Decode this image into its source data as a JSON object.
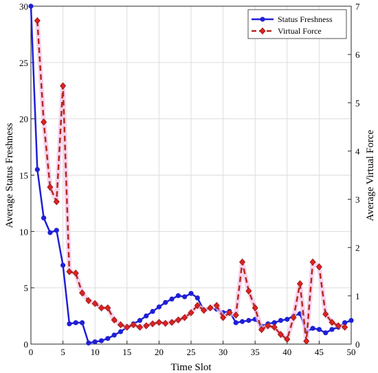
{
  "chart_data": {
    "type": "line",
    "title": "",
    "xlabel": "Time Slot",
    "ylabel_left": "Average Status Freshness",
    "ylabel_right": "Average Virtual Force",
    "xlim": [
      0,
      50
    ],
    "ylim_left": [
      0,
      30
    ],
    "ylim_right": [
      0,
      7
    ],
    "xticks": [
      "0",
      "5",
      "10",
      "15",
      "20",
      "25",
      "30",
      "35",
      "40",
      "45",
      "50"
    ],
    "yticks_left": [
      "0",
      "5",
      "10",
      "15",
      "20",
      "25",
      "30"
    ],
    "yticks_right": [
      "0",
      "1",
      "2",
      "3",
      "4",
      "5",
      "6",
      "7"
    ],
    "grid": true,
    "legend_position": "top-right",
    "series": [
      {
        "name": "Status Freshness",
        "axis": "left",
        "color": "#1f1fd6",
        "style": "solid",
        "marker": "circle",
        "x": [
          0,
          1,
          2,
          3,
          4,
          5,
          6,
          7,
          8,
          9,
          10,
          11,
          12,
          13,
          14,
          15,
          16,
          17,
          18,
          19,
          20,
          21,
          22,
          23,
          24,
          25,
          26,
          27,
          28,
          29,
          30,
          31,
          32,
          33,
          34,
          35,
          36,
          37,
          38,
          39,
          40,
          41,
          42,
          43,
          44,
          45,
          46,
          47,
          48,
          49,
          50
        ],
        "values": [
          30,
          15.5,
          11.2,
          9.9,
          10.1,
          7.0,
          1.8,
          1.9,
          1.9,
          0.1,
          0.2,
          0.3,
          0.5,
          0.8,
          1.1,
          1.5,
          1.8,
          2.1,
          2.5,
          2.9,
          3.3,
          3.7,
          4.0,
          4.3,
          4.2,
          4.5,
          4.1,
          3.0,
          3.2,
          3.1,
          2.8,
          2.9,
          1.9,
          2.0,
          2.1,
          2.2,
          1.6,
          1.8,
          1.9,
          2.1,
          2.2,
          2.5,
          2.7,
          1.1,
          1.4,
          1.3,
          1.0,
          1.3,
          1.5,
          1.9,
          2.1
        ]
      },
      {
        "name": "Virtual Force",
        "axis": "right",
        "color": "#b5291c",
        "style": "dashed",
        "marker": "diamond",
        "x": [
          1,
          2,
          3,
          4,
          5,
          6,
          7,
          8,
          9,
          10,
          11,
          12,
          13,
          14,
          15,
          16,
          17,
          18,
          19,
          20,
          21,
          22,
          23,
          24,
          25,
          26,
          27,
          28,
          29,
          30,
          31,
          32,
          33,
          34,
          35,
          36,
          37,
          38,
          39,
          40,
          41,
          42,
          43,
          44,
          45,
          46,
          47,
          48,
          49
        ],
        "values": [
          6.7,
          4.6,
          3.25,
          2.95,
          5.35,
          1.5,
          1.47,
          1.06,
          0.9,
          0.84,
          0.75,
          0.75,
          0.5,
          0.4,
          0.35,
          0.4,
          0.35,
          0.38,
          0.42,
          0.45,
          0.43,
          0.45,
          0.5,
          0.55,
          0.65,
          0.8,
          0.7,
          0.75,
          0.8,
          0.55,
          0.65,
          0.6,
          1.7,
          1.1,
          0.75,
          0.3,
          0.38,
          0.35,
          0.2,
          0.1,
          0.55,
          1.25,
          0.06,
          1.7,
          1.6,
          0.62,
          0.45,
          0.38,
          0.35
        ]
      }
    ]
  }
}
